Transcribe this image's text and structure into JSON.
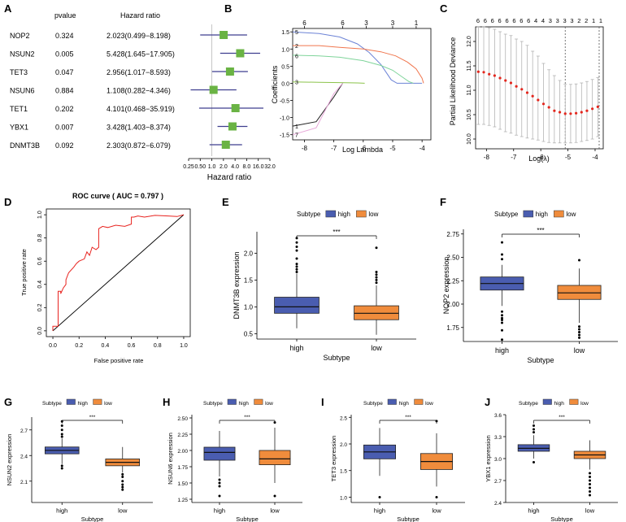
{
  "colors": {
    "forest_box": "#6ab344",
    "forest_line": "#3f3f8f",
    "roc_line": "#e8231f",
    "high": "#4a5db0",
    "low": "#f08c3c",
    "cv_point": "#e3271e",
    "text": "#000000"
  },
  "panel_letters": [
    "A",
    "B",
    "C",
    "D",
    "E",
    "F",
    "G",
    "H",
    "I",
    "J"
  ],
  "chart_data": [
    {
      "panel": "A",
      "type": "forest",
      "col_pvalue": "pvalue",
      "col_hr": "Hazard ratio",
      "xlabel": "Hazard ratio",
      "x_ticks": [
        "0.25",
        "0.50",
        "1.0",
        "2.0",
        "4.0",
        "8.0",
        "16.0",
        "32.0"
      ],
      "x_range_log2": [
        -2,
        5
      ],
      "rows": [
        {
          "gene": "NOP2",
          "pvalue": "0.324",
          "hr_text": "2.023(0.499−8.198)",
          "hr": 2.023,
          "lo": 0.499,
          "hi": 8.198
        },
        {
          "gene": "NSUN2",
          "pvalue": "0.005",
          "hr_text": "5.428(1.645−17.905)",
          "hr": 5.428,
          "lo": 1.645,
          "hi": 17.905
        },
        {
          "gene": "TET3",
          "pvalue": "0.047",
          "hr_text": "2.956(1.017−8.593)",
          "hr": 2.956,
          "lo": 1.017,
          "hi": 8.593
        },
        {
          "gene": "NSUN6",
          "pvalue": "0.884",
          "hr_text": "1.108(0.282−4.346)",
          "hr": 1.108,
          "lo": 0.282,
          "hi": 4.346
        },
        {
          "gene": "TET1",
          "pvalue": "0.202",
          "hr_text": "4.101(0.468−35.919)",
          "hr": 4.101,
          "lo": 0.468,
          "hi": 35.919
        },
        {
          "gene": "YBX1",
          "pvalue": "0.007",
          "hr_text": "3.428(1.403−8.374)",
          "hr": 3.428,
          "lo": 1.403,
          "hi": 8.374
        },
        {
          "gene": "DNMT3B",
          "pvalue": "0.092",
          "hr_text": "2.303(0.872−6.079)",
          "hr": 2.303,
          "lo": 0.872,
          "hi": 6.079
        }
      ]
    },
    {
      "panel": "B",
      "type": "line",
      "xlabel": "Log Lambda",
      "ylabel": "Coefficients",
      "xlim": [
        -8.4,
        -3.7
      ],
      "ylim": [
        -1.65,
        1.6
      ],
      "x_ticks": [
        "-8",
        "-7",
        "-6",
        "-5",
        "-4"
      ],
      "y_ticks": [
        "-1.5",
        "-1.0",
        "-0.5",
        "0.0",
        "0.5",
        "1.0",
        "1.5"
      ],
      "top_ticks": [
        {
          "x": -8,
          "label": "6"
        },
        {
          "x": -6.7,
          "label": "6"
        },
        {
          "x": -5.9,
          "label": "3"
        },
        {
          "x": -5.0,
          "label": "3"
        },
        {
          "x": -4.2,
          "label": "1"
        }
      ],
      "left_labels": [
        {
          "y": 1.5,
          "label": "5"
        },
        {
          "y": 1.1,
          "label": "2"
        },
        {
          "y": 0.8,
          "label": "6"
        },
        {
          "y": 0.05,
          "label": "3"
        },
        {
          "y": -1.25,
          "label": "1"
        },
        {
          "y": -1.5,
          "label": "7"
        }
      ],
      "series": [
        {
          "name": "5",
          "color": "#6c83d6",
          "x": [
            -8.4,
            -7.5,
            -6.8,
            -6.2,
            -5.8,
            -5.4,
            -5.05,
            -4.85,
            -4.0
          ],
          "y": [
            1.5,
            1.45,
            1.35,
            1.15,
            0.9,
            0.55,
            0.1,
            0.0,
            0.0
          ]
        },
        {
          "name": "2",
          "color": "#f0764e",
          "x": [
            -8.4,
            -7.5,
            -6.8,
            -6.0,
            -5.4,
            -4.9,
            -4.5,
            -4.2,
            -4.0,
            -3.95
          ],
          "y": [
            1.1,
            1.1,
            1.05,
            1.0,
            0.92,
            0.8,
            0.62,
            0.42,
            0.15,
            0.0
          ]
        },
        {
          "name": "6",
          "color": "#7fd49a",
          "x": [
            -8.4,
            -7.5,
            -6.8,
            -6.0,
            -5.4,
            -5.0,
            -4.7,
            -4.45,
            -4.3
          ],
          "y": [
            0.82,
            0.8,
            0.76,
            0.66,
            0.52,
            0.38,
            0.2,
            0.05,
            0.0
          ]
        },
        {
          "name": "3",
          "color": "#8bc34a",
          "x": [
            -8.4,
            -7.5,
            -6.8,
            -6.2,
            -5.95
          ],
          "y": [
            0.04,
            0.03,
            0.02,
            0.01,
            0.0
          ]
        },
        {
          "name": "1",
          "color": "#222222",
          "x": [
            -8.4,
            -7.6,
            -7.0,
            -6.7
          ],
          "y": [
            -1.25,
            -1.12,
            -0.4,
            0.0
          ]
        },
        {
          "name": "7",
          "color": "#e7a6d8",
          "x": [
            -8.4,
            -7.6,
            -7.0,
            -6.7
          ],
          "y": [
            -1.5,
            -1.3,
            -0.3,
            0.0
          ]
        }
      ]
    },
    {
      "panel": "C",
      "type": "scatter",
      "xlabel": "Log(λ)",
      "ylabel": "Partial Likelihood Deviance",
      "xlim": [
        -8.4,
        -3.7
      ],
      "ylim": [
        9.8,
        12.3
      ],
      "x_ticks": [
        "-8",
        "-7",
        "-6",
        "-5",
        "-4"
      ],
      "y_ticks": [
        "10.0",
        "10.5",
        "11.0",
        "11.5",
        "12.0"
      ],
      "top_labels": [
        "6",
        "6",
        "6",
        "6",
        "6",
        "6",
        "6",
        "6",
        "4",
        "4",
        "3",
        "3",
        "3",
        "3",
        "2",
        "2",
        "1",
        "1"
      ],
      "vlines": [
        -5.1,
        -3.85
      ],
      "points": [
        {
          "x": -8.3,
          "y": 11.38,
          "lo": 10.3,
          "hi": 12.3
        },
        {
          "x": -8.1,
          "y": 11.37,
          "lo": 10.3,
          "hi": 12.3
        },
        {
          "x": -7.9,
          "y": 11.33,
          "lo": 10.28,
          "hi": 12.28
        },
        {
          "x": -7.7,
          "y": 11.3,
          "lo": 10.25,
          "hi": 12.25
        },
        {
          "x": -7.5,
          "y": 11.25,
          "lo": 10.2,
          "hi": 12.2
        },
        {
          "x": -7.3,
          "y": 11.2,
          "lo": 10.15,
          "hi": 12.15
        },
        {
          "x": -7.1,
          "y": 11.15,
          "lo": 10.12,
          "hi": 12.12
        },
        {
          "x": -6.9,
          "y": 11.08,
          "lo": 10.08,
          "hi": 12.05
        },
        {
          "x": -6.7,
          "y": 11.02,
          "lo": 10.05,
          "hi": 12.0
        },
        {
          "x": -6.5,
          "y": 10.95,
          "lo": 10.02,
          "hi": 11.92
        },
        {
          "x": -6.3,
          "y": 10.88,
          "lo": 10.0,
          "hi": 11.8
        },
        {
          "x": -6.1,
          "y": 10.8,
          "lo": 9.98,
          "hi": 11.7
        },
        {
          "x": -5.9,
          "y": 10.72,
          "lo": 9.95,
          "hi": 11.55
        },
        {
          "x": -5.7,
          "y": 10.65,
          "lo": 9.93,
          "hi": 11.42
        },
        {
          "x": -5.5,
          "y": 10.58,
          "lo": 9.92,
          "hi": 11.3
        },
        {
          "x": -5.3,
          "y": 10.55,
          "lo": 9.92,
          "hi": 11.2
        },
        {
          "x": -5.1,
          "y": 10.52,
          "lo": 9.92,
          "hi": 11.12
        },
        {
          "x": -4.9,
          "y": 10.52,
          "lo": 9.92,
          "hi": 11.12
        },
        {
          "x": -4.7,
          "y": 10.53,
          "lo": 9.93,
          "hi": 11.13
        },
        {
          "x": -4.5,
          "y": 10.55,
          "lo": 9.95,
          "hi": 11.15
        },
        {
          "x": -4.3,
          "y": 10.58,
          "lo": 9.97,
          "hi": 11.18
        },
        {
          "x": -4.1,
          "y": 10.62,
          "lo": 10.0,
          "hi": 11.22
        },
        {
          "x": -3.9,
          "y": 10.66,
          "lo": 10.05,
          "hi": 11.26
        }
      ]
    },
    {
      "panel": "D",
      "type": "line",
      "title": "ROC curve ( AUC =  0.797 )",
      "xlabel": "False positive rate",
      "ylabel": "True positive rate",
      "xlim": [
        0,
        1
      ],
      "ylim": [
        0,
        1
      ],
      "x_ticks": [
        "0.0",
        "0.2",
        "0.4",
        "0.6",
        "0.8",
        "1.0"
      ],
      "y_ticks": [
        "0.0",
        "0.2",
        "0.4",
        "0.6",
        "0.8",
        "1.0"
      ],
      "roc_x": [
        0.0,
        0.0,
        0.04,
        0.04,
        0.06,
        0.06,
        0.08,
        0.1,
        0.1,
        0.12,
        0.16,
        0.18,
        0.2,
        0.24,
        0.26,
        0.28,
        0.3,
        0.33,
        0.35,
        0.35,
        0.38,
        0.42,
        0.48,
        0.55,
        0.6,
        0.6,
        0.62,
        0.65,
        0.7,
        0.78,
        0.88,
        0.95,
        1.0
      ],
      "roc_y": [
        0.0,
        0.04,
        0.04,
        0.34,
        0.34,
        0.32,
        0.37,
        0.4,
        0.44,
        0.5,
        0.55,
        0.58,
        0.6,
        0.62,
        0.68,
        0.65,
        0.72,
        0.7,
        0.72,
        0.88,
        0.9,
        0.89,
        0.91,
        0.9,
        0.92,
        0.98,
        0.98,
        0.99,
        0.98,
        0.995,
        0.99,
        0.985,
        1.0
      ]
    },
    {
      "panel": "E",
      "type": "box",
      "legend_title": "Subtype",
      "legend_high": "high",
      "legend_low": "low",
      "xlabel": "Subtype",
      "ylabel": "DNMT3B expression",
      "categories": [
        "high",
        "low"
      ],
      "signif": "***",
      "ylim": [
        0.4,
        2.4
      ],
      "y_ticks": [
        0.5,
        1.0,
        1.5,
        2.0
      ],
      "y_tick_labels": [
        "0.5",
        "1.0",
        "1.5",
        "2.0"
      ],
      "series": [
        {
          "name": "high",
          "min": 0.6,
          "q1": 0.88,
          "median": 1.0,
          "q3": 1.18,
          "max": 1.62,
          "outliers": [
            1.65,
            1.7,
            1.75,
            1.8,
            1.9,
            2.05,
            2.12,
            2.2,
            2.28
          ]
        },
        {
          "name": "low",
          "min": 0.48,
          "q1": 0.76,
          "median": 0.88,
          "q3": 1.02,
          "max": 1.4,
          "outliers": [
            1.45,
            1.5,
            1.55,
            1.6,
            1.65,
            2.1
          ]
        }
      ]
    },
    {
      "panel": "F",
      "type": "box",
      "legend_title": "Subtype",
      "legend_high": "high",
      "legend_low": "low",
      "xlabel": "Subtype",
      "ylabel": "NOP2 expression",
      "categories": [
        "high",
        "low"
      ],
      "signif": "***",
      "ylim": [
        1.6,
        2.8
      ],
      "y_ticks": [
        1.75,
        2.0,
        2.25,
        2.5,
        2.75
      ],
      "y_tick_labels": [
        "1.75",
        "2.00",
        "2.25",
        "2.50",
        "2.75"
      ],
      "series": [
        {
          "name": "high",
          "min": 1.98,
          "q1": 2.15,
          "median": 2.22,
          "q3": 2.29,
          "max": 2.42,
          "outliers": [
            1.62,
            1.72,
            1.8,
            1.83,
            1.85,
            1.88,
            1.92,
            2.48,
            2.53,
            2.66
          ]
        },
        {
          "name": "low",
          "min": 1.8,
          "q1": 2.05,
          "median": 2.12,
          "q3": 2.2,
          "max": 2.38,
          "outliers": [
            1.64,
            1.67,
            1.7,
            1.73,
            1.76,
            2.47
          ]
        }
      ]
    },
    {
      "panel": "G",
      "type": "box",
      "legend_title": "Subtype",
      "legend_high": "high",
      "legend_low": "low",
      "xlabel": "Subtype",
      "ylabel": "NSUN2 expression",
      "categories": [
        "high",
        "low"
      ],
      "signif": "***",
      "ylim": [
        1.85,
        2.85
      ],
      "y_ticks": [
        2.1,
        2.4,
        2.7
      ],
      "y_tick_labels": [
        "2.1",
        "2.4",
        "2.7"
      ],
      "series": [
        {
          "name": "high",
          "min": 2.3,
          "q1": 2.42,
          "median": 2.46,
          "q3": 2.5,
          "max": 2.6,
          "outliers": [
            2.25,
            2.28,
            2.62,
            2.65,
            2.7,
            2.75,
            2.8
          ]
        },
        {
          "name": "low",
          "min": 2.2,
          "q1": 2.28,
          "median": 2.32,
          "q3": 2.36,
          "max": 2.5,
          "outliers": [
            2.0,
            2.03,
            2.06,
            2.1,
            2.15,
            2.18
          ]
        }
      ]
    },
    {
      "panel": "H",
      "type": "box",
      "legend_title": "Subtype",
      "legend_high": "high",
      "legend_low": "low",
      "xlabel": "Subtype",
      "ylabel": "NSUN6 expression",
      "categories": [
        "high",
        "low"
      ],
      "signif": "***",
      "ylim": [
        1.2,
        2.55
      ],
      "y_ticks": [
        1.25,
        1.5,
        1.75,
        2.0,
        2.25,
        2.5
      ],
      "y_tick_labels": [
        "1.25",
        "1.50",
        "1.75",
        "2.00",
        "2.25",
        "2.50"
      ],
      "series": [
        {
          "name": "high",
          "min": 1.6,
          "q1": 1.85,
          "median": 1.97,
          "q3": 2.05,
          "max": 2.3,
          "outliers": [
            1.3,
            1.45,
            1.5,
            1.55
          ]
        },
        {
          "name": "low",
          "min": 1.5,
          "q1": 1.78,
          "median": 1.87,
          "q3": 2.0,
          "max": 2.35,
          "outliers": [
            1.3,
            2.43
          ]
        }
      ]
    },
    {
      "panel": "I",
      "type": "box",
      "legend_title": "Subtype",
      "legend_high": "high",
      "legend_low": "low",
      "xlabel": "Subtype",
      "ylabel": "TET3 expression",
      "categories": [
        "high",
        "low"
      ],
      "signif": "***",
      "ylim": [
        0.9,
        2.55
      ],
      "y_ticks": [
        1.0,
        1.5,
        2.0,
        2.5
      ],
      "y_tick_labels": [
        "1.0",
        "1.5",
        "2.0",
        "2.5"
      ],
      "series": [
        {
          "name": "high",
          "min": 1.4,
          "q1": 1.72,
          "median": 1.85,
          "q3": 1.98,
          "max": 2.3,
          "outliers": [
            1.0
          ]
        },
        {
          "name": "low",
          "min": 1.2,
          "q1": 1.52,
          "median": 1.67,
          "q3": 1.82,
          "max": 2.2,
          "outliers": [
            1.0,
            2.43
          ]
        }
      ]
    },
    {
      "panel": "J",
      "type": "box",
      "legend_title": "Subtype",
      "legend_high": "high",
      "legend_low": "low",
      "xlabel": "Subtype",
      "ylabel": "YBX1 expression",
      "categories": [
        "high",
        "low"
      ],
      "signif": "***",
      "ylim": [
        2.4,
        3.6
      ],
      "y_ticks": [
        2.4,
        2.7,
        3.0,
        3.3,
        3.6
      ],
      "y_tick_labels": [
        "2.4",
        "2.7",
        "3.0",
        "3.3",
        "3.6"
      ],
      "series": [
        {
          "name": "high",
          "min": 3.0,
          "q1": 3.1,
          "median": 3.14,
          "q3": 3.19,
          "max": 3.32,
          "outliers": [
            2.95,
            3.36,
            3.4,
            3.45
          ]
        },
        {
          "name": "low",
          "min": 2.85,
          "q1": 3.0,
          "median": 3.05,
          "q3": 3.1,
          "max": 3.25,
          "outliers": [
            2.5,
            2.55,
            2.6,
            2.65,
            2.7,
            2.75,
            2.8
          ]
        }
      ]
    }
  ]
}
